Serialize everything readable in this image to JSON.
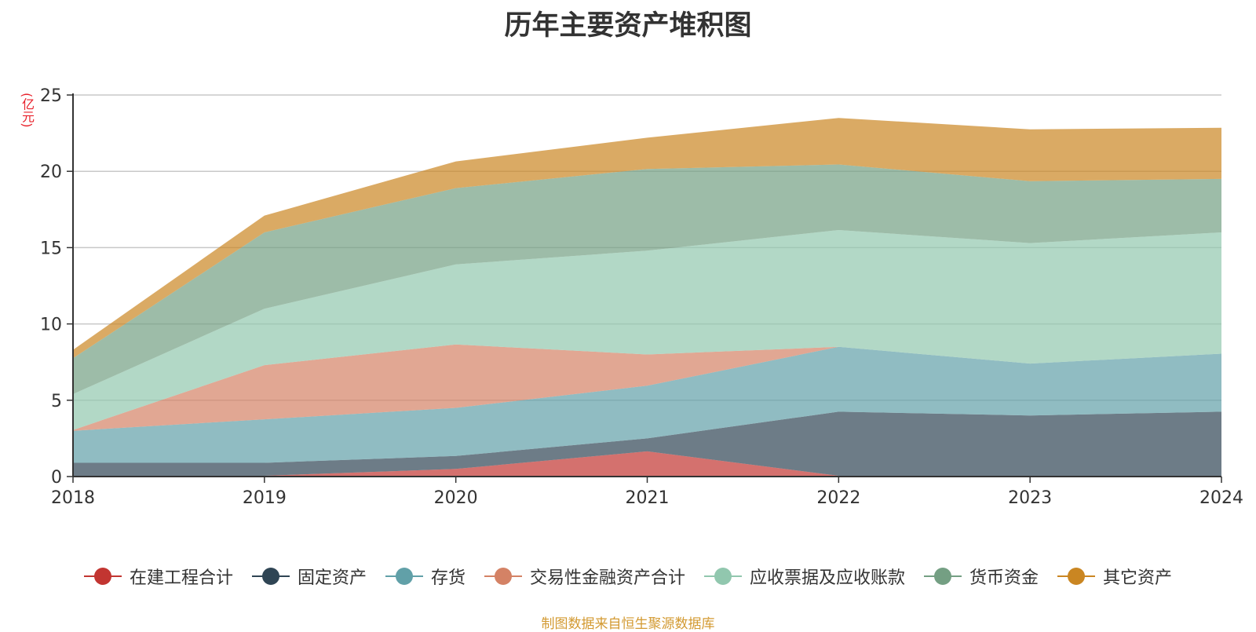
{
  "chart_data": {
    "type": "area",
    "stacked": true,
    "title": "历年主要资产堆积图",
    "unit_label": "(亿元)",
    "categories": [
      "2018",
      "2019",
      "2020",
      "2021",
      "2022",
      "2023",
      "2024"
    ],
    "ylim": [
      0,
      25
    ],
    "yticks": [
      0,
      5,
      10,
      15,
      20,
      25
    ],
    "grid": true,
    "legend_position": "bottom",
    "series": [
      {
        "name": "在建工程合计",
        "color": "#c23531",
        "values": [
          0,
          0.05,
          0.5,
          1.65,
          0.05,
          0.05,
          0.05
        ]
      },
      {
        "name": "固定资产",
        "color": "#2f4554",
        "values": [
          0.9,
          0.85,
          0.85,
          0.85,
          4.2,
          3.95,
          4.2
        ]
      },
      {
        "name": "存货",
        "color": "#61a0a8",
        "values": [
          2.1,
          2.85,
          3.15,
          3.45,
          4.25,
          3.4,
          3.8
        ]
      },
      {
        "name": "交易性金融资产合计",
        "color": "#d48265",
        "values": [
          0.05,
          3.55,
          4.15,
          2.05,
          0.0,
          0.0,
          0.0
        ]
      },
      {
        "name": "应收票据及应收账款",
        "color": "#91c7ae",
        "values": [
          2.35,
          3.7,
          5.25,
          6.8,
          7.65,
          7.9,
          7.95
        ]
      },
      {
        "name": "货币资金",
        "color": "#749f83",
        "values": [
          2.35,
          5.0,
          5.0,
          5.35,
          4.3,
          4.05,
          3.5
        ]
      },
      {
        "name": "其它资产",
        "color": "#ca8622",
        "values": [
          0.55,
          1.1,
          1.75,
          2.05,
          3.05,
          3.4,
          3.35
        ]
      }
    ]
  },
  "footnote": "制图数据来自恒生聚源数据库"
}
